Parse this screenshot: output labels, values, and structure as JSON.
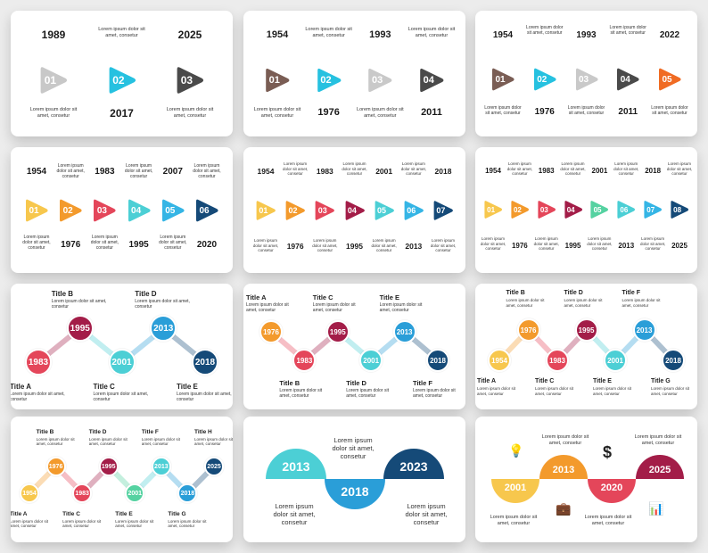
{
  "colors": {
    "grey": "#c8c8c8",
    "cyan": "#26c1e0",
    "dark": "#4a4a4a",
    "brown": "#7a5d54",
    "lightgrey": "#c9c9c9",
    "orange": "#f06b23",
    "yellow": "#f7c74d",
    "amber": "#f39a2c",
    "red": "#e4465a",
    "crimson": "#a31d48",
    "teal": "#4ccfd5",
    "sky": "#35b5e5",
    "navy": "#154a78",
    "green": "#55d2a1",
    "blue": "#2a9ed8"
  },
  "lorem3": "Lorem ipsum dolor sit amet, consetur",
  "slides": [
    {
      "name": "three-step-timeline",
      "items": [
        {
          "year": "1989",
          "num": "01",
          "color": "#c8c8c8"
        },
        {
          "year": "2017",
          "num": "02",
          "color": "#26c1e0"
        },
        {
          "year": "2025",
          "num": "03",
          "color": "#4a4a4a"
        }
      ]
    },
    {
      "name": "four-step-timeline",
      "items": [
        {
          "year": "1954",
          "num": "01",
          "color": "#7a5d54"
        },
        {
          "year": "1976",
          "num": "02",
          "color": "#26c1e0"
        },
        {
          "year": "1993",
          "num": "03",
          "color": "#c9c9c9"
        },
        {
          "year": "2011",
          "num": "04",
          "color": "#4a4a4a"
        }
      ]
    },
    {
      "name": "five-step-timeline",
      "items": [
        {
          "year": "1954",
          "num": "01",
          "color": "#7a5d54"
        },
        {
          "year": "1976",
          "num": "02",
          "color": "#26c1e0"
        },
        {
          "year": "1993",
          "num": "03",
          "color": "#c9c9c9"
        },
        {
          "year": "2011",
          "num": "04",
          "color": "#4a4a4a"
        },
        {
          "year": "2022",
          "num": "05",
          "color": "#f06b23"
        }
      ]
    },
    {
      "name": "six-step-timeline",
      "items": [
        {
          "year": "1954",
          "num": "01",
          "color": "#f7c74d"
        },
        {
          "year": "1976",
          "num": "02",
          "color": "#f39a2c"
        },
        {
          "year": "1983",
          "num": "03",
          "color": "#e4465a"
        },
        {
          "year": "1995",
          "num": "04",
          "color": "#4ccfd5"
        },
        {
          "year": "2007",
          "num": "05",
          "color": "#35b5e5"
        },
        {
          "year": "2020",
          "num": "06",
          "color": "#154a78"
        }
      ]
    },
    {
      "name": "seven-step-timeline",
      "items": [
        {
          "year": "1954",
          "num": "01",
          "color": "#f7c74d"
        },
        {
          "year": "1976",
          "num": "02",
          "color": "#f39a2c"
        },
        {
          "year": "1983",
          "num": "03",
          "color": "#e4465a"
        },
        {
          "year": "1995",
          "num": "04",
          "color": "#a31d48"
        },
        {
          "year": "2001",
          "num": "05",
          "color": "#4ccfd5"
        },
        {
          "year": "2013",
          "num": "06",
          "color": "#35b5e5"
        },
        {
          "year": "2018",
          "num": "07",
          "color": "#154a78"
        }
      ]
    },
    {
      "name": "eight-step-timeline",
      "items": [
        {
          "year": "1954",
          "num": "01",
          "color": "#f7c74d"
        },
        {
          "year": "1976",
          "num": "02",
          "color": "#f39a2c"
        },
        {
          "year": "1983",
          "num": "03",
          "color": "#e4465a"
        },
        {
          "year": "1995",
          "num": "04",
          "color": "#a31d48"
        },
        {
          "year": "2001",
          "num": "05",
          "color": "#55d2a1"
        },
        {
          "year": "2013",
          "num": "06",
          "color": "#4ccfd5"
        },
        {
          "year": "2018",
          "num": "07",
          "color": "#35b5e5"
        },
        {
          "year": "2025",
          "num": "08",
          "color": "#154a78"
        }
      ]
    },
    {
      "name": "five-circle-wave",
      "items": [
        {
          "year": "1983",
          "title": "Title A",
          "color": "#e4465a"
        },
        {
          "year": "1995",
          "title": "Title B",
          "color": "#a31d48"
        },
        {
          "year": "2001",
          "title": "Title C",
          "color": "#4ccfd5"
        },
        {
          "year": "2013",
          "title": "Title D",
          "color": "#2a9ed8"
        },
        {
          "year": "2018",
          "title": "Title E",
          "color": "#154a78"
        }
      ]
    },
    {
      "name": "six-circle-wave",
      "items": [
        {
          "year": "1976",
          "title": "Title A",
          "color": "#f39a2c"
        },
        {
          "year": "1983",
          "title": "Title B",
          "color": "#e4465a"
        },
        {
          "year": "1995",
          "title": "Title C",
          "color": "#a31d48"
        },
        {
          "year": "2001",
          "title": "Title D",
          "color": "#4ccfd5"
        },
        {
          "year": "2013",
          "title": "Title E",
          "color": "#2a9ed8"
        },
        {
          "year": "2018",
          "title": "Title F",
          "color": "#154a78"
        }
      ]
    },
    {
      "name": "seven-circle-wave",
      "items": [
        {
          "year": "1954",
          "title": "Title A",
          "color": "#f7c74d"
        },
        {
          "year": "1976",
          "title": "Title B",
          "color": "#f39a2c"
        },
        {
          "year": "1983",
          "title": "Title C",
          "color": "#e4465a"
        },
        {
          "year": "1995",
          "title": "Title D",
          "color": "#a31d48"
        },
        {
          "year": "2001",
          "title": "Title E",
          "color": "#4ccfd5"
        },
        {
          "year": "2013",
          "title": "Title F",
          "color": "#2a9ed8"
        },
        {
          "year": "2018",
          "title": "Title G",
          "color": "#154a78"
        }
      ]
    },
    {
      "name": "eight-circle-wave",
      "items": [
        {
          "year": "1954",
          "title": "Title A",
          "color": "#f7c74d"
        },
        {
          "year": "1976",
          "title": "Title B",
          "color": "#f39a2c"
        },
        {
          "year": "1983",
          "title": "Title C",
          "color": "#e4465a"
        },
        {
          "year": "1995",
          "title": "Title D",
          "color": "#a31d48"
        },
        {
          "year": "2001",
          "title": "Title E",
          "color": "#55d2a1"
        },
        {
          "year": "2013",
          "title": "Title F",
          "color": "#4ccfd5"
        },
        {
          "year": "2018",
          "title": "Title G",
          "color": "#2a9ed8"
        },
        {
          "year": "2025",
          "title": "Title H",
          "color": "#154a78"
        }
      ]
    },
    {
      "name": "three-semicircle-timeline",
      "items": [
        {
          "year": "2013",
          "color": "#4ccfd5"
        },
        {
          "year": "2018",
          "color": "#2a9ed8"
        },
        {
          "year": "2023",
          "color": "#154a78"
        }
      ]
    },
    {
      "name": "four-semicircle-timeline",
      "items": [
        {
          "year": "2001",
          "color": "#f7c74d",
          "icon": "briefcase-icon"
        },
        {
          "year": "2013",
          "color": "#f39a2c",
          "icon": "lightbulb-icon"
        },
        {
          "year": "2020",
          "color": "#e4465a",
          "icon": "dollar-icon"
        },
        {
          "year": "2025",
          "color": "#a31d48",
          "icon": "bar-chart-icon"
        }
      ],
      "icons": {
        "lightbulb": "💡",
        "dollar": "$",
        "briefcase": "💼",
        "bar_chart": "📊"
      }
    }
  ]
}
